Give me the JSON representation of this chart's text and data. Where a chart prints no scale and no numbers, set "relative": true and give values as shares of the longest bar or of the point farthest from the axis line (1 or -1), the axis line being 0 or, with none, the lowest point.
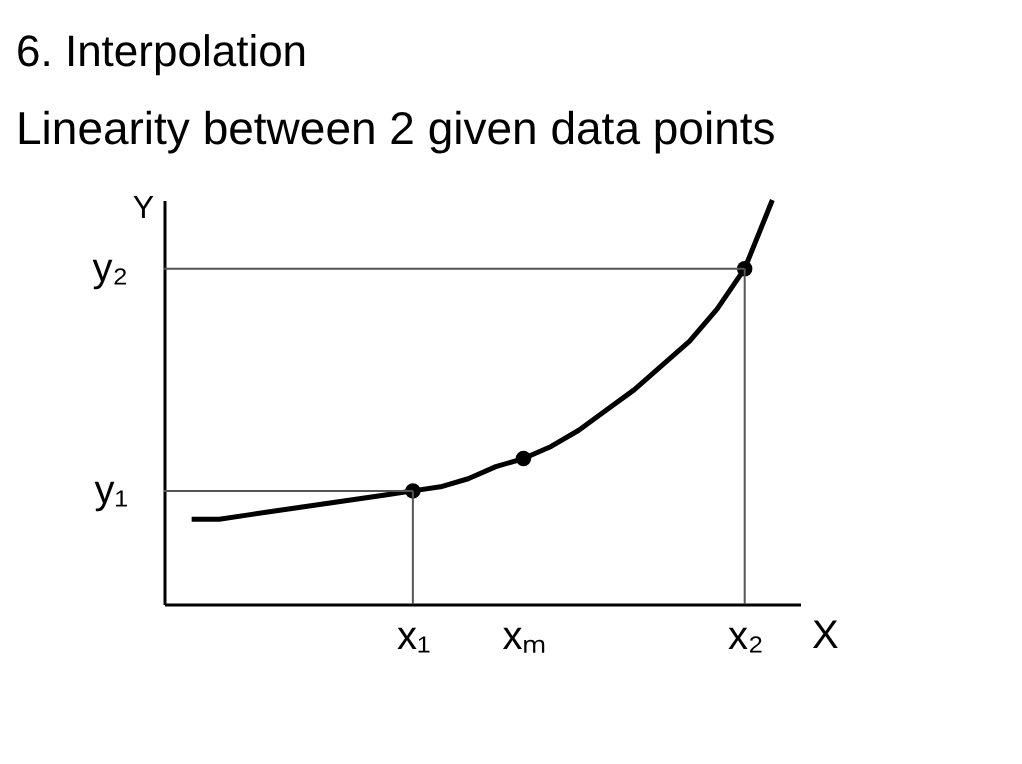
{
  "chart_data": {
    "type": "line",
    "title": "6. Interpolation",
    "subtitle": "Linearity between 2 given data points",
    "xlabel": "X",
    "ylabel": "Y",
    "relative": true,
    "categories": [
      null,
      null,
      null,
      null,
      null,
      null,
      null,
      null,
      "x₁",
      null,
      null,
      null,
      "xₘ",
      null,
      null,
      null,
      null,
      null,
      null,
      null,
      "x₂",
      null
    ],
    "ref_lines": [
      {
        "axis": "y",
        "value": 0.28,
        "label": "y₁",
        "color": "#555555",
        "line_style": "solid"
      },
      {
        "axis": "y",
        "value": 0.83,
        "label": "y₂",
        "color": "#555555",
        "line_style": "solid"
      }
    ],
    "series": [
      {
        "color": "#000000",
        "line_style": "solid",
        "values": [
          0.21,
          0.21,
          0.22,
          0.23,
          0.24,
          0.25,
          0.26,
          0.27,
          0.28,
          0.29,
          0.31,
          0.34,
          0.36,
          0.39,
          0.43,
          0.48,
          0.53,
          0.59,
          0.65,
          0.73,
          0.83,
          1.0
        ]
      },
      {
        "type": "scatter",
        "color": "#000000",
        "marker": "circle",
        "values": [
          null,
          null,
          null,
          null,
          null,
          null,
          null,
          null,
          0.28,
          null,
          null,
          null,
          0.36,
          null,
          null,
          null,
          null,
          null,
          null,
          null,
          0.83,
          null
        ]
      }
    ]
  }
}
